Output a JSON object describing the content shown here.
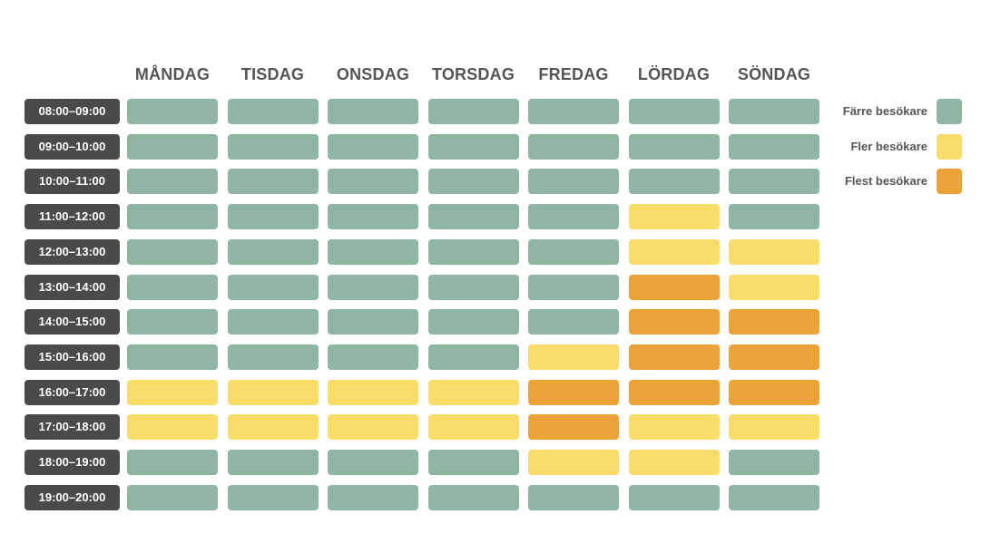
{
  "chart_data": {
    "type": "heatmap",
    "columns": [
      "MÅNDAG",
      "TISDAG",
      "ONSDAG",
      "TORSDAG",
      "FREDAG",
      "LÖRDAG",
      "SÖNDAG"
    ],
    "rows": [
      "08:00–09:00",
      "09:00–10:00",
      "10:00–11:00",
      "11:00–12:00",
      "12:00–13:00",
      "13:00–14:00",
      "14:00–15:00",
      "15:00–16:00",
      "16:00–17:00",
      "17:00–18:00",
      "18:00–19:00",
      "19:00–20:00"
    ],
    "levels": [
      "Färre besökare",
      "Fler besökare",
      "Flest besökare"
    ],
    "colors": [
      "#8fb5a3",
      "#f9dd6a",
      "#eba236"
    ],
    "values": [
      [
        0,
        0,
        0,
        0,
        0,
        0,
        0
      ],
      [
        0,
        0,
        0,
        0,
        0,
        0,
        0
      ],
      [
        0,
        0,
        0,
        0,
        0,
        0,
        0
      ],
      [
        0,
        0,
        0,
        0,
        0,
        1,
        0
      ],
      [
        0,
        0,
        0,
        0,
        0,
        1,
        1
      ],
      [
        0,
        0,
        0,
        0,
        0,
        2,
        1
      ],
      [
        0,
        0,
        0,
        0,
        0,
        2,
        2
      ],
      [
        0,
        0,
        0,
        0,
        1,
        2,
        2
      ],
      [
        1,
        1,
        1,
        1,
        2,
        2,
        2
      ],
      [
        1,
        1,
        1,
        1,
        2,
        1,
        1
      ],
      [
        0,
        0,
        0,
        0,
        1,
        1,
        0
      ],
      [
        0,
        0,
        0,
        0,
        0,
        0,
        0
      ]
    ],
    "legend_position": "right"
  }
}
